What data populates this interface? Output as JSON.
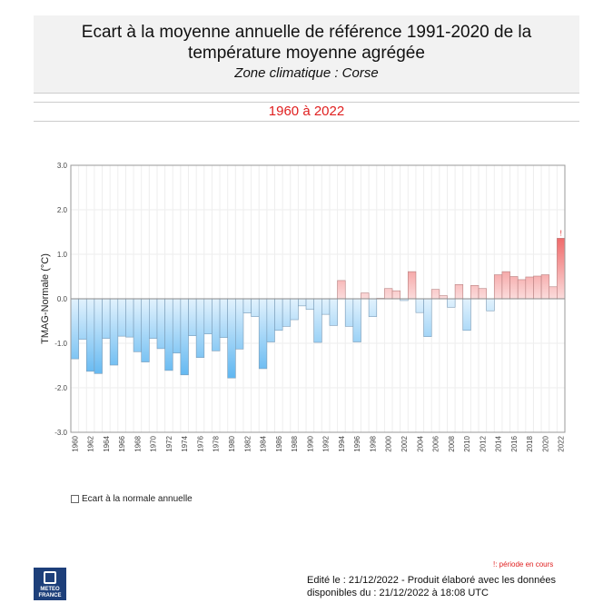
{
  "header": {
    "title": "Ecart à la moyenne annuelle de référence 1991-2020  de la température moyenne  agrégée",
    "subtitle": "Zone climatique : Corse"
  },
  "period": "1960 à 2022",
  "legend": {
    "label": "Ecart à la normale annuelle"
  },
  "note": "!: période en cours",
  "logo": {
    "line1": "METEO",
    "line2": "FRANCE"
  },
  "footer": {
    "line1": "Edité le : 21/12/2022 - Produit élaboré avec les données",
    "line2": "disponibles du : 21/12/2022 à 18:08 UTC"
  },
  "chart_data": {
    "type": "bar",
    "ylabel": "TMAG-Normale (°C)",
    "ylim": [
      -3.0,
      3.0
    ],
    "yticks": [
      "3.0",
      "2.0",
      "1.0",
      "0.0",
      "-1.0",
      "-2.0",
      "-3.0"
    ],
    "grid": true,
    "colors": {
      "negative": "#5ab4f0",
      "positive": "#f06a6a"
    },
    "annotation": {
      "year": 2022,
      "text": "!"
    },
    "categories": [
      1960,
      1961,
      1962,
      1963,
      1964,
      1965,
      1966,
      1967,
      1968,
      1969,
      1970,
      1971,
      1972,
      1973,
      1974,
      1975,
      1976,
      1977,
      1978,
      1979,
      1980,
      1981,
      1982,
      1983,
      1984,
      1985,
      1986,
      1987,
      1988,
      1989,
      1990,
      1991,
      1992,
      1993,
      1994,
      1995,
      1996,
      1997,
      1998,
      1999,
      2000,
      2001,
      2002,
      2003,
      2004,
      2005,
      2006,
      2007,
      2008,
      2009,
      2010,
      2011,
      2012,
      2013,
      2014,
      2015,
      2016,
      2017,
      2018,
      2019,
      2020,
      2021,
      2022
    ],
    "values": [
      -1.35,
      -0.91,
      -1.63,
      -1.68,
      -0.89,
      -1.49,
      -0.84,
      -0.86,
      -1.19,
      -1.42,
      -0.89,
      -1.12,
      -1.61,
      -1.22,
      -1.71,
      -0.83,
      -1.32,
      -0.79,
      -1.17,
      -0.87,
      -1.78,
      -1.13,
      -0.32,
      -0.4,
      -1.57,
      -0.97,
      -0.71,
      -0.62,
      -0.47,
      -0.16,
      -0.24,
      -0.98,
      -0.35,
      -0.6,
      0.41,
      -0.62,
      -0.97,
      0.13,
      -0.4,
      0.01,
      0.23,
      0.18,
      -0.04,
      0.61,
      -0.31,
      -0.85,
      0.21,
      0.07,
      -0.19,
      0.32,
      -0.71,
      0.3,
      0.23,
      -0.27,
      0.54,
      0.61,
      0.5,
      0.43,
      0.49,
      0.51,
      0.54,
      0.27,
      1.36
    ]
  }
}
